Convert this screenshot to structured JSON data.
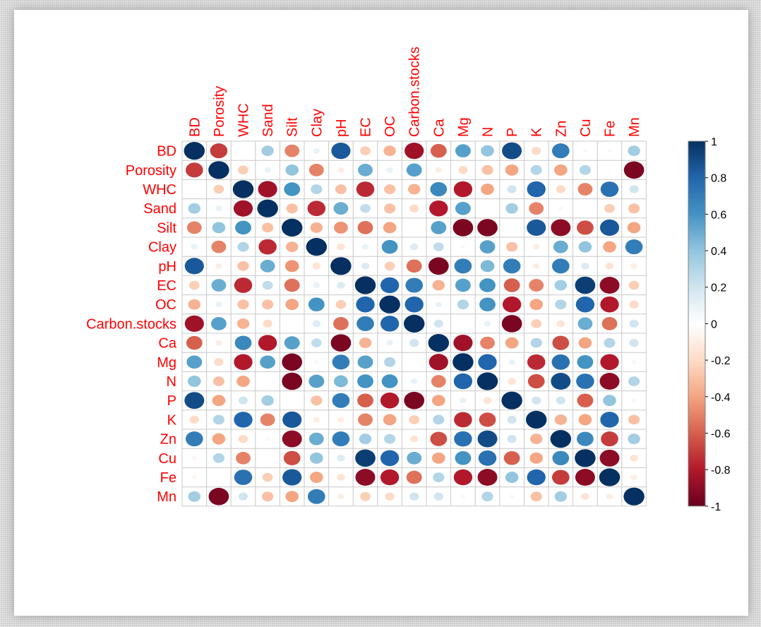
{
  "chart_data": {
    "type": "heatmap",
    "style": "circle-correlation-matrix",
    "variables": [
      "BD",
      "Porosity",
      "WHC",
      "Sand",
      "Silt",
      "Clay",
      "pH",
      "EC",
      "OC",
      "Carbon.stocks",
      "Ca",
      "Mg",
      "N",
      "P",
      "K",
      "Zn",
      "Cu",
      "Fe",
      "Mn"
    ],
    "matrix": [
      [
        1.0,
        -0.7,
        0.0,
        0.35,
        -0.5,
        0.1,
        0.85,
        -0.25,
        -0.35,
        -0.85,
        -0.6,
        0.55,
        0.4,
        0.9,
        -0.2,
        0.7,
        -0.05,
        -0.05,
        0.35
      ],
      [
        -0.7,
        1.0,
        -0.25,
        0.1,
        0.4,
        -0.5,
        -0.1,
        0.5,
        0.1,
        0.55,
        -0.1,
        -0.2,
        -0.3,
        -0.4,
        0.3,
        -0.4,
        0.3,
        0.0,
        -0.95
      ],
      [
        0.0,
        -0.25,
        1.0,
        -0.85,
        0.6,
        0.3,
        -0.3,
        -0.75,
        -0.3,
        -0.35,
        0.65,
        -0.8,
        -0.4,
        0.2,
        0.8,
        -0.2,
        -0.5,
        0.75,
        0.2
      ],
      [
        0.35,
        0.1,
        -0.85,
        1.0,
        -0.3,
        -0.75,
        0.5,
        0.25,
        -0.3,
        -0.2,
        -0.8,
        0.55,
        0.0,
        0.35,
        -0.5,
        0.05,
        0.0,
        -0.25,
        -0.3
      ],
      [
        -0.5,
        0.4,
        0.6,
        -0.3,
        1.0,
        -0.35,
        -0.45,
        -0.55,
        -0.4,
        0.0,
        0.55,
        -0.95,
        -0.95,
        0.0,
        0.85,
        -0.9,
        -0.65,
        0.85,
        -0.4
      ],
      [
        0.1,
        -0.5,
        0.3,
        -0.75,
        -0.35,
        1.0,
        -0.15,
        0.1,
        0.6,
        0.15,
        0.25,
        0.05,
        0.55,
        -0.3,
        -0.1,
        0.5,
        0.4,
        -0.4,
        0.7
      ],
      [
        0.85,
        -0.1,
        -0.3,
        0.5,
        -0.45,
        -0.15,
        1.0,
        0.15,
        -0.25,
        -0.55,
        -0.95,
        0.7,
        0.45,
        0.7,
        -0.1,
        0.7,
        0.15,
        -0.15,
        -0.1
      ],
      [
        -0.25,
        0.5,
        -0.75,
        0.25,
        -0.55,
        0.1,
        0.15,
        1.0,
        0.8,
        0.7,
        -0.35,
        0.55,
        0.6,
        -0.6,
        -0.5,
        0.35,
        0.95,
        -0.9,
        -0.25
      ],
      [
        -0.35,
        0.1,
        -0.3,
        -0.3,
        -0.4,
        0.6,
        -0.25,
        0.8,
        1.0,
        0.8,
        0.1,
        0.3,
        0.6,
        -0.8,
        -0.4,
        0.3,
        0.8,
        -0.8,
        -0.2
      ],
      [
        -0.85,
        0.55,
        -0.35,
        -0.2,
        0.0,
        0.15,
        -0.55,
        0.7,
        0.8,
        1.0,
        0.2,
        0.0,
        0.1,
        -0.95,
        -0.25,
        -0.15,
        0.5,
        -0.55,
        0.2
      ],
      [
        -0.6,
        -0.1,
        0.65,
        -0.8,
        0.55,
        0.25,
        -0.95,
        -0.35,
        0.1,
        0.2,
        1.0,
        -0.85,
        -0.5,
        -0.4,
        0.3,
        -0.65,
        -0.4,
        0.3,
        0.2
      ],
      [
        0.55,
        -0.2,
        -0.8,
        0.55,
        -0.95,
        0.05,
        0.7,
        0.55,
        0.3,
        0.0,
        -0.85,
        1.0,
        0.8,
        0.1,
        -0.75,
        0.75,
        0.6,
        -0.8,
        0.05
      ],
      [
        0.4,
        -0.3,
        -0.4,
        0.0,
        -0.95,
        0.55,
        0.45,
        0.6,
        0.6,
        0.1,
        -0.5,
        0.8,
        1.0,
        -0.15,
        -0.65,
        0.9,
        0.75,
        -0.9,
        0.3
      ],
      [
        0.9,
        -0.4,
        0.2,
        0.35,
        0.0,
        -0.3,
        0.7,
        -0.6,
        -0.8,
        -0.95,
        -0.4,
        0.1,
        -0.15,
        1.0,
        0.2,
        0.2,
        -0.6,
        0.4,
        0.05
      ],
      [
        -0.2,
        0.3,
        0.8,
        -0.5,
        0.85,
        -0.1,
        -0.1,
        -0.5,
        -0.4,
        -0.25,
        0.3,
        -0.75,
        -0.65,
        0.2,
        1.0,
        -0.35,
        -0.4,
        0.8,
        -0.3
      ],
      [
        0.7,
        -0.4,
        -0.2,
        0.05,
        -0.9,
        0.5,
        0.7,
        0.35,
        0.3,
        -0.15,
        -0.65,
        0.75,
        0.9,
        0.2,
        -0.35,
        1.0,
        0.65,
        -0.7,
        0.35
      ],
      [
        -0.05,
        0.3,
        -0.5,
        0.0,
        -0.65,
        0.4,
        0.15,
        0.95,
        0.8,
        0.5,
        -0.4,
        0.6,
        0.75,
        -0.6,
        -0.4,
        0.65,
        1.0,
        -0.9,
        -0.15
      ],
      [
        -0.05,
        0.0,
        0.75,
        -0.25,
        0.85,
        -0.4,
        -0.15,
        -0.9,
        -0.8,
        -0.55,
        0.3,
        -0.8,
        -0.9,
        0.4,
        0.8,
        -0.7,
        -0.9,
        1.0,
        -0.1
      ],
      [
        0.35,
        -0.95,
        0.2,
        -0.3,
        -0.4,
        0.7,
        -0.1,
        -0.25,
        -0.2,
        0.2,
        0.2,
        0.05,
        0.3,
        0.05,
        -0.3,
        0.35,
        -0.15,
        -0.1,
        1.0
      ]
    ],
    "colorbar": {
      "range": [
        -1,
        1
      ],
      "ticks": [
        "1",
        "0.8",
        "0.6",
        "0.4",
        "0.2",
        "0",
        "-0.2",
        "-0.4",
        "-0.6",
        "-0.8",
        "-1"
      ],
      "colors": [
        "#67001F",
        "#B2182B",
        "#D6604D",
        "#F4A582",
        "#FDDBC7",
        "#FFFFFF",
        "#D1E5F0",
        "#92C5DE",
        "#4393C3",
        "#2166AC",
        "#053061"
      ]
    },
    "label_color": "#FF0000"
  }
}
